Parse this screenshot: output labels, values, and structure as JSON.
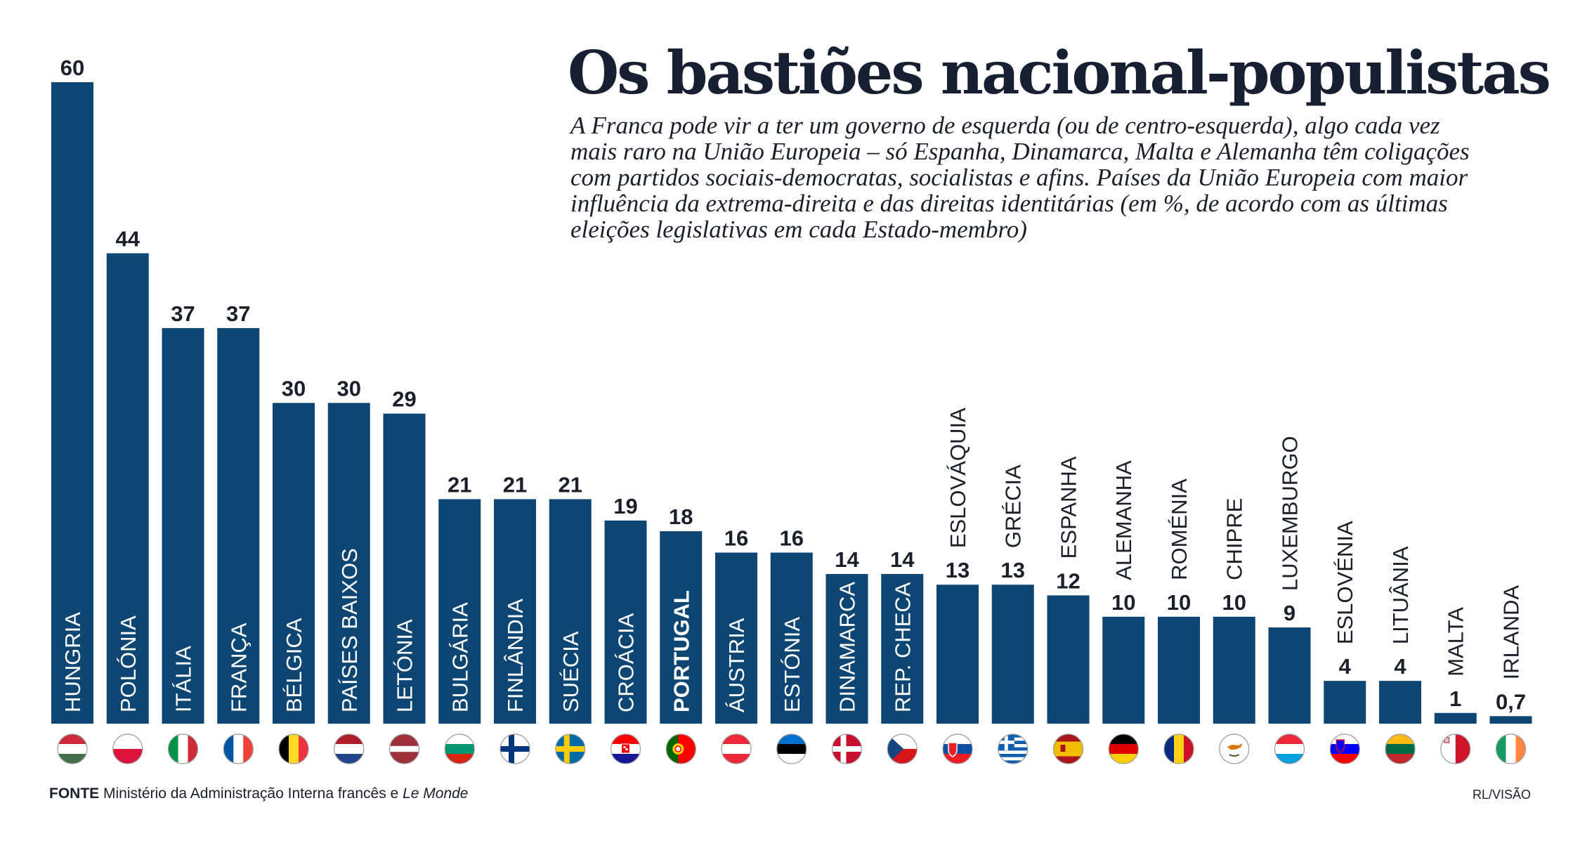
{
  "header": {
    "title": "Os bastiões nacional-populistas",
    "subtitle": "A Franca pode vir a ter um governo de esquerda (ou de centro-esquerda), algo cada vez mais raro na União Europeia – só Espanha, Dinamarca, Malta e Alemanha têm coligações com partidos sociais-democratas, socialistas e afins. Países da União Europeia com maior influência da extrema-direita e das direitas identitárias (em %, de acordo com as últimas eleições legislativas em cada Estado-membro)"
  },
  "footer": {
    "source_label": "FONTE",
    "source_text": "Ministério da Administração Interna francês e",
    "source_italic": "Le Monde",
    "credit": "RL/VISÃO"
  },
  "colors": {
    "bar": "#0d4673",
    "text_light": "#ffffff",
    "text_dark": "#1b1f2a"
  },
  "chart_data": {
    "type": "bar",
    "title": "Os bastiões nacional-populistas",
    "ylim": [
      0,
      60
    ],
    "grid": false,
    "categories": [
      "HUNGRIA",
      "POLÓNIA",
      "ITÁLIA",
      "FRANÇA",
      "BÉLGICA",
      "PAÍSES BAIXOS",
      "LETÓNIA",
      "BULGÁRIA",
      "FINLÂNDIA",
      "SUÉCIA",
      "CROÁCIA",
      "PORTUGAL",
      "ÁUSTRIA",
      "ESTÓNIA",
      "DINAMARCA",
      "REP. CHECA",
      "ESLOVÁQUIA",
      "GRÉCIA",
      "ESPANHA",
      "ALEMANHA",
      "ROMÉNIA",
      "CHIPRE",
      "LUXEMBURGO",
      "ESLOVÉNIA",
      "LITUÂNIA",
      "MALTA",
      "IRLANDA"
    ],
    "values": [
      60,
      44,
      37,
      37,
      30,
      30,
      29,
      21,
      21,
      21,
      19,
      18,
      16,
      16,
      14,
      14,
      13,
      13,
      12,
      10,
      10,
      10,
      9,
      4,
      4,
      1,
      0.7
    ],
    "value_labels": [
      "60",
      "44",
      "37",
      "37",
      "30",
      "30",
      "29",
      "21",
      "21",
      "21",
      "19",
      "18",
      "16",
      "16",
      "14",
      "14",
      "13",
      "13",
      "12",
      "10",
      "10",
      "10",
      "9",
      "4",
      "4",
      "1",
      "0,7"
    ],
    "highlight": "PORTUGAL",
    "flags": [
      "hungary-flag",
      "poland-flag",
      "italy-flag",
      "france-flag",
      "belgium-flag",
      "netherlands-flag",
      "latvia-flag",
      "bulgaria-flag",
      "finland-flag",
      "sweden-flag",
      "croatia-flag",
      "portugal-flag",
      "austria-flag",
      "estonia-flag",
      "denmark-flag",
      "czechia-flag",
      "slovakia-flag",
      "greece-flag",
      "spain-flag",
      "germany-flag",
      "romania-flag",
      "cyprus-flag",
      "luxembourg-flag",
      "slovenia-flag",
      "lithuania-flag",
      "malta-flag",
      "ireland-flag"
    ]
  }
}
